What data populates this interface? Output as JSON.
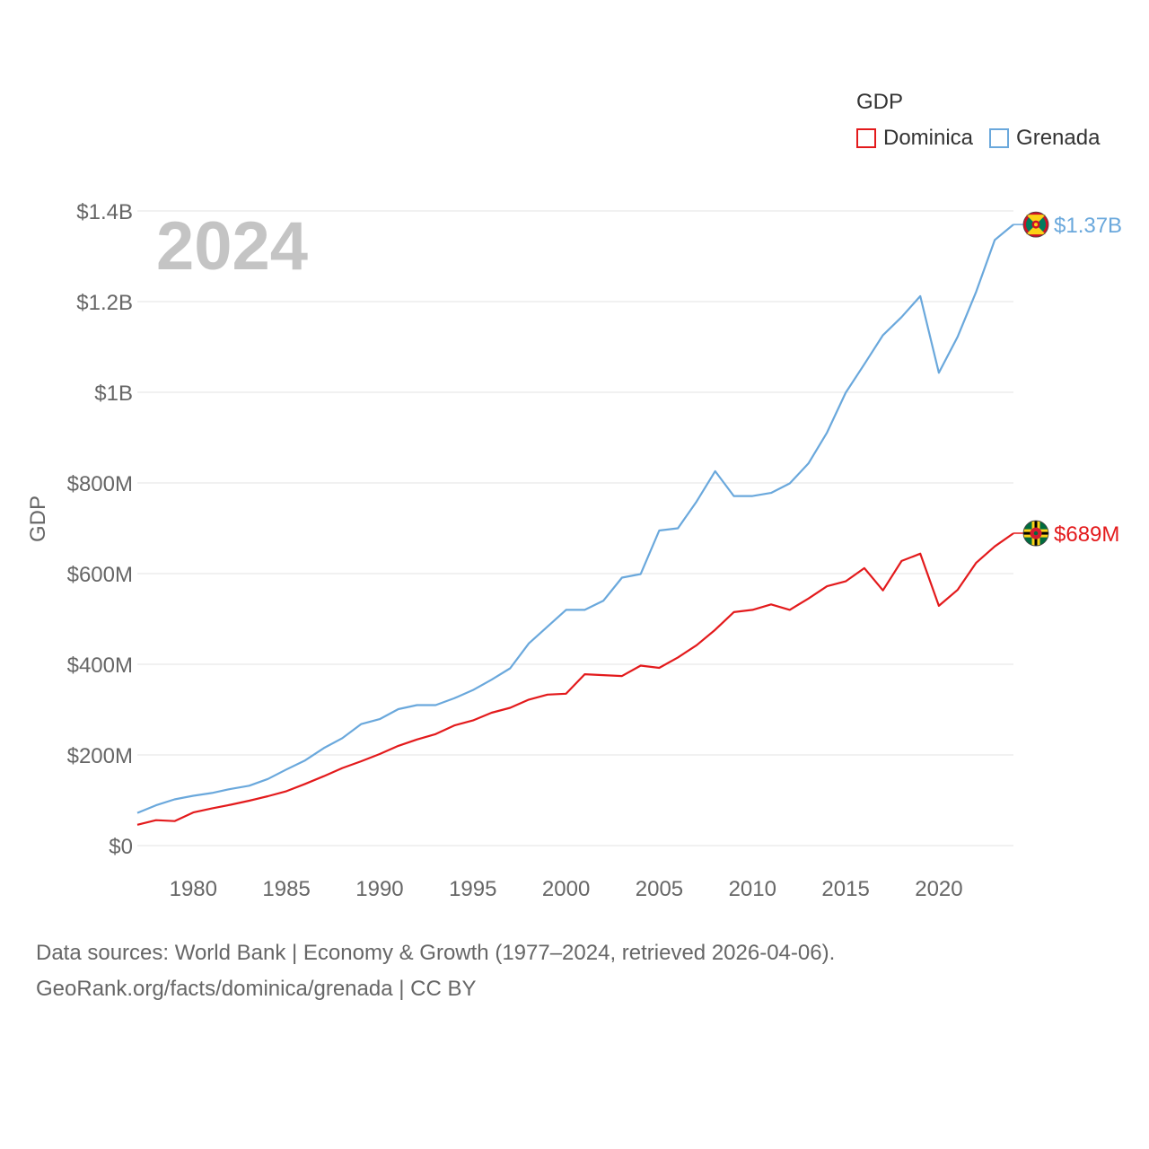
{
  "chart_data": {
    "type": "line",
    "year_label": "2024",
    "ylabel": "GDP",
    "xlabel": "",
    "legend": {
      "title": "GDP",
      "placement": "top-right"
    },
    "xlim": [
      1977,
      2024
    ],
    "ylim": [
      0,
      1400000000
    ],
    "x_ticks": [
      1980,
      1985,
      1990,
      1995,
      2000,
      2005,
      2010,
      2015,
      2020
    ],
    "x_tick_labels": [
      "1980",
      "1985",
      "1990",
      "1995",
      "2000",
      "2005",
      "2010",
      "2015",
      "2020"
    ],
    "y_ticks": [
      0,
      200000000,
      400000000,
      600000000,
      800000000,
      1000000000,
      1200000000,
      1400000000
    ],
    "y_tick_labels": [
      "$0",
      "$200M",
      "$400M",
      "$600M",
      "$800M",
      "$1B",
      "$1.2B",
      "$1.4B"
    ],
    "grid": true,
    "x": [
      1977,
      1978,
      1979,
      1980,
      1981,
      1982,
      1983,
      1984,
      1985,
      1986,
      1987,
      1988,
      1989,
      1990,
      1991,
      1992,
      1993,
      1994,
      1995,
      1996,
      1997,
      1998,
      1999,
      2000,
      2001,
      2002,
      2003,
      2004,
      2005,
      2006,
      2007,
      2008,
      2009,
      2010,
      2011,
      2012,
      2013,
      2014,
      2015,
      2016,
      2017,
      2018,
      2019,
      2020,
      2021,
      2022,
      2023,
      2024
    ],
    "series": [
      {
        "name": "Dominica",
        "color": "#e31a1c",
        "end_label": "$689M",
        "flag": "dominica-flag",
        "values": [
          46000000,
          56000000,
          54000000,
          73000000,
          82000000,
          90000000,
          99000000,
          109000000,
          120000000,
          136000000,
          153000000,
          171000000,
          186000000,
          202000000,
          220000000,
          234000000,
          246000000,
          265000000,
          276000000,
          293000000,
          304000000,
          322000000,
          333000000,
          335000000,
          378000000,
          376000000,
          374000000,
          397000000,
          392000000,
          415000000,
          442000000,
          476000000,
          515000000,
          520000000,
          532000000,
          520000000,
          545000000,
          572000000,
          583000000,
          612000000,
          563000000,
          628000000,
          644000000,
          529000000,
          564000000,
          624000000,
          660000000,
          689000000
        ]
      },
      {
        "name": "Grenada",
        "color": "#6aa8dc",
        "end_label": "$1.37B",
        "flag": "grenada-flag",
        "values": [
          72000000,
          89000000,
          102000000,
          110000000,
          116000000,
          125000000,
          132000000,
          147000000,
          168000000,
          188000000,
          215000000,
          237000000,
          268000000,
          279000000,
          301000000,
          310000000,
          310000000,
          325000000,
          343000000,
          366000000,
          391000000,
          446000000,
          483000000,
          520000000,
          520000000,
          540000000,
          591000000,
          599000000,
          695000000,
          700000000,
          759000000,
          826000000,
          771000000,
          771000000,
          778000000,
          799000000,
          843000000,
          911000000,
          999000000,
          1062000000,
          1126000000,
          1166000000,
          1212000000,
          1043000000,
          1122000000,
          1222000000,
          1336000000,
          1370000000
        ]
      }
    ]
  },
  "footer": {
    "line1": "Data sources: World Bank | Economy & Growth (1977–2024, retrieved 2026-04-06).",
    "line2": "GeoRank.org/facts/dominica/grenada | CC BY"
  }
}
